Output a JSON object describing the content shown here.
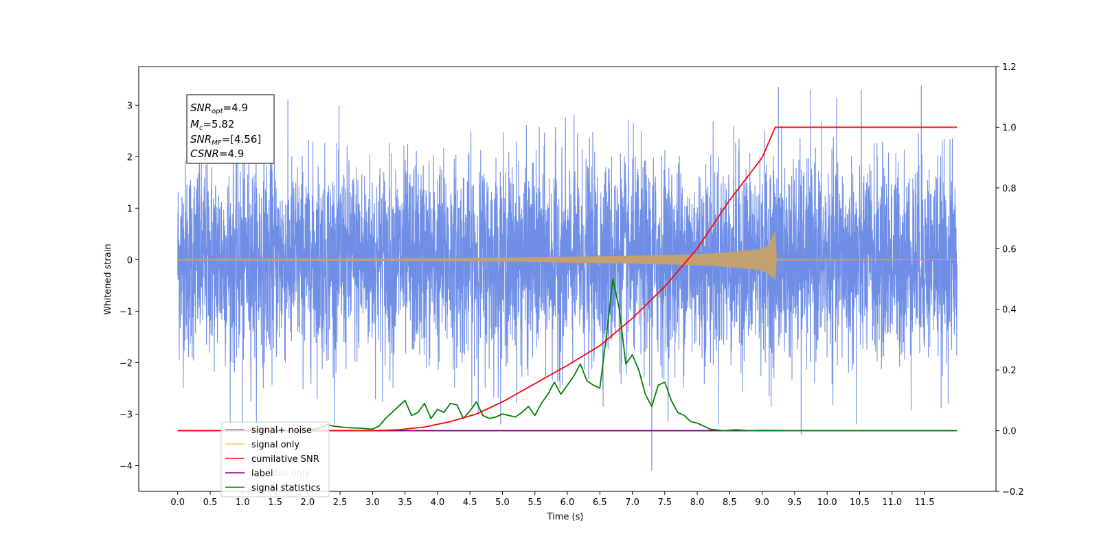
{
  "chart_data": {
    "type": "line",
    "xlabel": "Time (s)",
    "ylabel": "Whitened strain",
    "xlim": [
      -0.6,
      12.6
    ],
    "ylim": [
      -4.5,
      3.75
    ],
    "ylim_right": [
      -0.2,
      1.2
    ],
    "x_ticks": [
      "0.0",
      "0.5",
      "1.0",
      "1.5",
      "2.0",
      "2.5",
      "3.0",
      "3.5",
      "4.0",
      "4.5",
      "5.0",
      "5.5",
      "6.0",
      "6.5",
      "7.0",
      "7.5",
      "8.0",
      "8.5",
      "9.0",
      "9.5",
      "10.0",
      "10.5",
      "11.0",
      "11.5"
    ],
    "y_ticks_left": [
      "3",
      "2",
      "1",
      "0",
      "−1",
      "−2",
      "−3",
      "−4"
    ],
    "y_ticks_right": [
      "1.2",
      "1.0",
      "0.8",
      "0.6",
      "0.4",
      "0.2",
      "0.0",
      "−0.2"
    ],
    "grid": false,
    "legend_position": "lower-left",
    "annotation": {
      "lines": [
        {
          "base": "SNR",
          "sub": "opt",
          "value": "=4.9"
        },
        {
          "base": "M",
          "sub": "c",
          "value": "=5.82"
        },
        {
          "base": "SNR",
          "sub": "MF",
          "value": "=[4.56]"
        },
        {
          "base": "CSNR",
          "sub": "",
          "value": "=4.9"
        }
      ]
    },
    "series": [
      {
        "name": "signal+ noise",
        "axis": "left",
        "color": "#6f8ee6",
        "description_values": {
          "time_range": [
            0.0,
            12.0
          ],
          "typical_amplitude": 1.6,
          "max": 3.38,
          "min": -4.1
        }
      },
      {
        "name": "signal only",
        "axis": "left",
        "color": "#c2a070",
        "envelope": {
          "x": [
            0.0,
            3.0,
            4.0,
            5.0,
            6.0,
            7.0,
            8.0,
            8.5,
            9.0,
            9.1,
            9.2,
            9.22,
            12.0
          ],
          "upper": [
            0.01,
            0.015,
            0.02,
            0.03,
            0.05,
            0.07,
            0.1,
            0.14,
            0.2,
            0.27,
            0.55,
            0.01,
            0.0
          ],
          "lower": [
            -0.01,
            -0.015,
            -0.02,
            -0.03,
            -0.05,
            -0.07,
            -0.1,
            -0.14,
            -0.2,
            -0.27,
            -0.38,
            -0.01,
            0.0
          ]
        }
      },
      {
        "name": "cumilative SNR",
        "axis": "right",
        "color": "#ff0000",
        "x": [
          0.0,
          3.0,
          3.4,
          3.8,
          4.2,
          4.6,
          5.0,
          5.5,
          6.0,
          6.5,
          7.0,
          7.5,
          8.0,
          8.5,
          9.0,
          9.2,
          12.0
        ],
        "values": [
          0.0,
          0.0,
          0.003,
          0.012,
          0.03,
          0.055,
          0.095,
          0.155,
          0.215,
          0.28,
          0.37,
          0.475,
          0.6,
          0.76,
          0.9,
          1.0,
          1.0
        ]
      },
      {
        "name": "label",
        "axis": "right",
        "color": "#800080",
        "x": [
          0.0,
          12.0
        ],
        "values": [
          0.0,
          0.0
        ]
      },
      {
        "name": "label only",
        "axis": "right",
        "color": "#c8c8c8",
        "x": [],
        "values": []
      },
      {
        "name": "signal statistics",
        "axis": "right",
        "color": "#008000",
        "x": [
          0.0,
          2.0,
          2.2,
          2.3,
          2.4,
          2.6,
          2.8,
          3.0,
          3.1,
          3.2,
          3.3,
          3.4,
          3.5,
          3.6,
          3.7,
          3.8,
          3.9,
          4.0,
          4.1,
          4.2,
          4.3,
          4.4,
          4.5,
          4.6,
          4.7,
          4.8,
          4.9,
          5.0,
          5.1,
          5.2,
          5.3,
          5.4,
          5.5,
          5.6,
          5.7,
          5.8,
          5.9,
          6.0,
          6.1,
          6.2,
          6.3,
          6.4,
          6.5,
          6.6,
          6.7,
          6.8,
          6.9,
          7.0,
          7.1,
          7.2,
          7.3,
          7.4,
          7.5,
          7.6,
          7.7,
          7.8,
          7.9,
          8.0,
          8.1,
          8.2,
          8.4,
          8.6,
          8.8,
          9.0,
          9.5,
          12.0
        ],
        "values": [
          0.0,
          0.0,
          0.01,
          0.02,
          0.015,
          0.01,
          0.008,
          0.005,
          0.015,
          0.04,
          0.06,
          0.08,
          0.1,
          0.05,
          0.06,
          0.09,
          0.04,
          0.07,
          0.06,
          0.09,
          0.085,
          0.04,
          0.065,
          0.095,
          0.05,
          0.04,
          0.045,
          0.055,
          0.05,
          0.045,
          0.06,
          0.08,
          0.05,
          0.09,
          0.12,
          0.16,
          0.12,
          0.15,
          0.18,
          0.22,
          0.165,
          0.15,
          0.14,
          0.31,
          0.5,
          0.4,
          0.22,
          0.25,
          0.2,
          0.12,
          0.08,
          0.15,
          0.16,
          0.1,
          0.06,
          0.05,
          0.03,
          0.025,
          0.015,
          0.005,
          0.0,
          0.003,
          0.0,
          0.001,
          0.0,
          0.0
        ]
      }
    ]
  }
}
